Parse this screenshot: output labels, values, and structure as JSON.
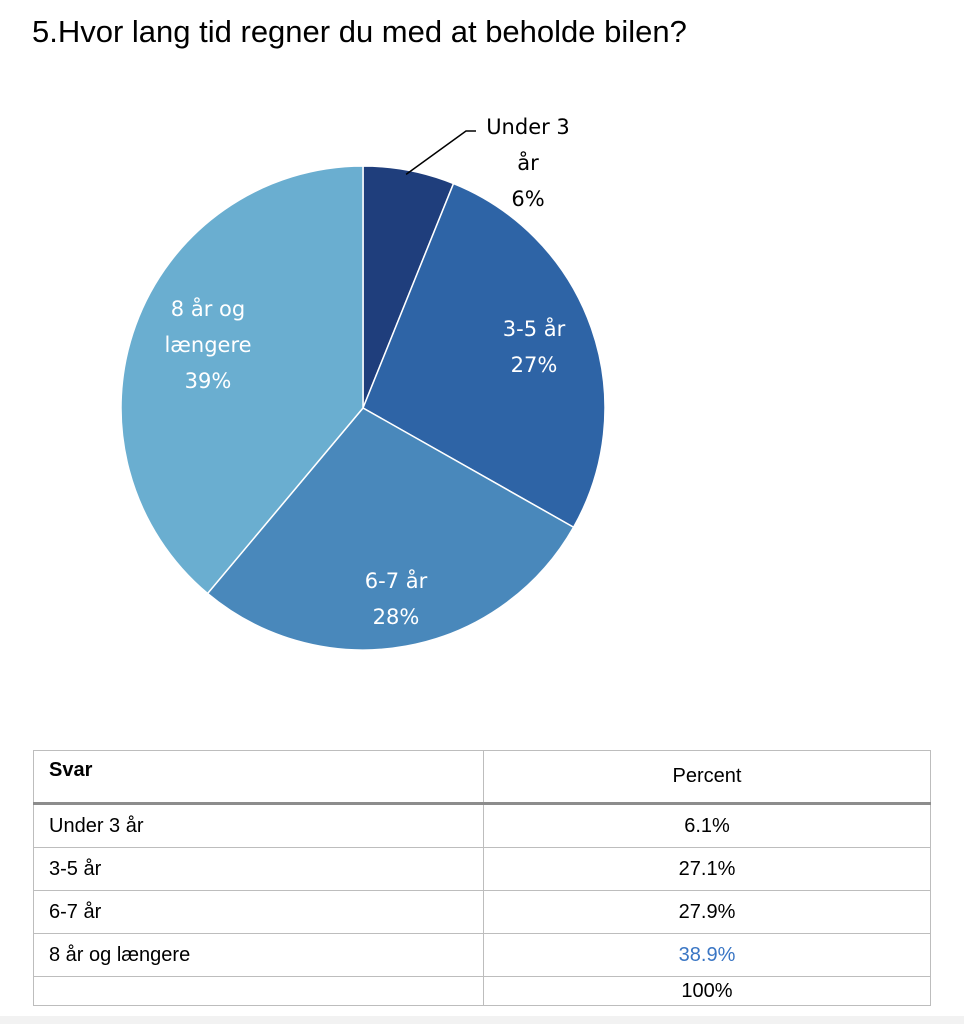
{
  "title": "5.Hvor lang tid regner du med at beholde bilen?",
  "chart_data": {
    "type": "pie",
    "title": "",
    "slices": [
      {
        "label_lines": [
          "Under 3",
          "år",
          "6%"
        ],
        "value": 6.1,
        "color": "#1f3e7c",
        "label_color": "#000000",
        "label_position": "outside"
      },
      {
        "label_lines": [
          "3-5 år",
          "27%"
        ],
        "value": 27.1,
        "color": "#2e64a6",
        "label_color": "#ffffff",
        "label_position": "inside"
      },
      {
        "label_lines": [
          "6-7 år",
          "28%"
        ],
        "value": 27.9,
        "color": "#4988bb",
        "label_color": "#ffffff",
        "label_position": "inside"
      },
      {
        "label_lines": [
          "8 år og",
          "længere",
          "39%"
        ],
        "value": 38.9,
        "color": "#6aaed0",
        "label_color": "#ffffff",
        "label_position": "inside"
      }
    ]
  },
  "table": {
    "headers": [
      "Svar",
      "Percent"
    ],
    "rows": [
      {
        "svar": "Under 3 år",
        "percent": "6.1%"
      },
      {
        "svar": "3-5 år",
        "percent": "27.1%"
      },
      {
        "svar": "6-7 år",
        "percent": "27.9%"
      },
      {
        "svar": "8 år og længere",
        "percent": "38.9%",
        "highlight_color": "#3a76c4"
      }
    ],
    "total": {
      "svar": "",
      "percent": "100%"
    }
  }
}
